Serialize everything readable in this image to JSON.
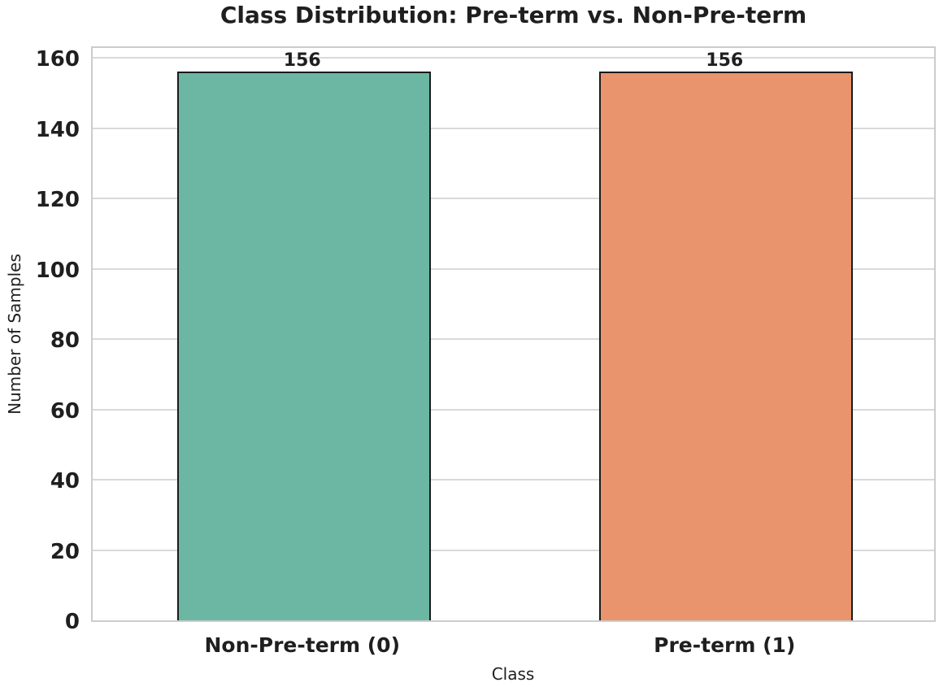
{
  "chart_data": {
    "type": "bar",
    "title": "Class Distribution: Pre-term vs. Non-Pre-term",
    "categories": [
      "Non-Pre-term (0)",
      "Pre-term (1)"
    ],
    "values": [
      156,
      156
    ],
    "bar_value_labels": [
      "156",
      "156"
    ],
    "bar_colors": [
      "#6cb7a3",
      "#e9946d"
    ],
    "bar_edge_color": "#1a1a1a",
    "xlabel": "Class",
    "ylabel": "Number of Samples",
    "yticks": [
      0,
      20,
      40,
      60,
      80,
      100,
      120,
      140,
      160
    ],
    "ylim": [
      0,
      163.7
    ],
    "grid": "horizontal",
    "grid_color": "#d9d9d9",
    "spine_color": "#cccccc",
    "background": "#ffffff",
    "legend": "none"
  }
}
